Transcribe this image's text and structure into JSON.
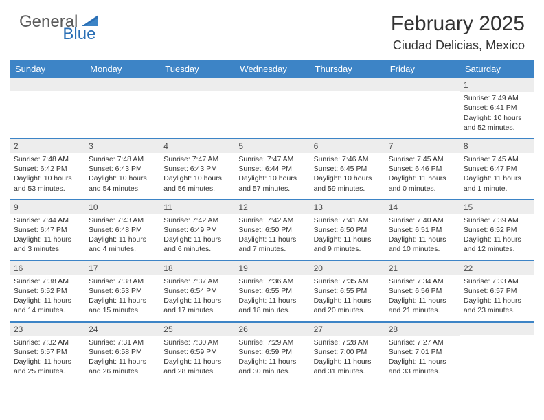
{
  "logo": {
    "general": "General",
    "blue": "Blue"
  },
  "title": "February 2025",
  "location": "Ciudad Delicias, Mexico",
  "colors": {
    "header_bar": "#3d84c6",
    "date_bar_bg": "#ededed",
    "text": "#333333",
    "logo_gray": "#5a5a5a",
    "logo_blue": "#2a6fb5"
  },
  "day_names": [
    "Sunday",
    "Monday",
    "Tuesday",
    "Wednesday",
    "Thursday",
    "Friday",
    "Saturday"
  ],
  "weeks": [
    [
      {
        "date": "",
        "sunrise": "",
        "sunset": "",
        "daylight": ""
      },
      {
        "date": "",
        "sunrise": "",
        "sunset": "",
        "daylight": ""
      },
      {
        "date": "",
        "sunrise": "",
        "sunset": "",
        "daylight": ""
      },
      {
        "date": "",
        "sunrise": "",
        "sunset": "",
        "daylight": ""
      },
      {
        "date": "",
        "sunrise": "",
        "sunset": "",
        "daylight": ""
      },
      {
        "date": "",
        "sunrise": "",
        "sunset": "",
        "daylight": ""
      },
      {
        "date": "1",
        "sunrise": "Sunrise: 7:49 AM",
        "sunset": "Sunset: 6:41 PM",
        "daylight": "Daylight: 10 hours and 52 minutes."
      }
    ],
    [
      {
        "date": "2",
        "sunrise": "Sunrise: 7:48 AM",
        "sunset": "Sunset: 6:42 PM",
        "daylight": "Daylight: 10 hours and 53 minutes."
      },
      {
        "date": "3",
        "sunrise": "Sunrise: 7:48 AM",
        "sunset": "Sunset: 6:43 PM",
        "daylight": "Daylight: 10 hours and 54 minutes."
      },
      {
        "date": "4",
        "sunrise": "Sunrise: 7:47 AM",
        "sunset": "Sunset: 6:43 PM",
        "daylight": "Daylight: 10 hours and 56 minutes."
      },
      {
        "date": "5",
        "sunrise": "Sunrise: 7:47 AM",
        "sunset": "Sunset: 6:44 PM",
        "daylight": "Daylight: 10 hours and 57 minutes."
      },
      {
        "date": "6",
        "sunrise": "Sunrise: 7:46 AM",
        "sunset": "Sunset: 6:45 PM",
        "daylight": "Daylight: 10 hours and 59 minutes."
      },
      {
        "date": "7",
        "sunrise": "Sunrise: 7:45 AM",
        "sunset": "Sunset: 6:46 PM",
        "daylight": "Daylight: 11 hours and 0 minutes."
      },
      {
        "date": "8",
        "sunrise": "Sunrise: 7:45 AM",
        "sunset": "Sunset: 6:47 PM",
        "daylight": "Daylight: 11 hours and 1 minute."
      }
    ],
    [
      {
        "date": "9",
        "sunrise": "Sunrise: 7:44 AM",
        "sunset": "Sunset: 6:47 PM",
        "daylight": "Daylight: 11 hours and 3 minutes."
      },
      {
        "date": "10",
        "sunrise": "Sunrise: 7:43 AM",
        "sunset": "Sunset: 6:48 PM",
        "daylight": "Daylight: 11 hours and 4 minutes."
      },
      {
        "date": "11",
        "sunrise": "Sunrise: 7:42 AM",
        "sunset": "Sunset: 6:49 PM",
        "daylight": "Daylight: 11 hours and 6 minutes."
      },
      {
        "date": "12",
        "sunrise": "Sunrise: 7:42 AM",
        "sunset": "Sunset: 6:50 PM",
        "daylight": "Daylight: 11 hours and 7 minutes."
      },
      {
        "date": "13",
        "sunrise": "Sunrise: 7:41 AM",
        "sunset": "Sunset: 6:50 PM",
        "daylight": "Daylight: 11 hours and 9 minutes."
      },
      {
        "date": "14",
        "sunrise": "Sunrise: 7:40 AM",
        "sunset": "Sunset: 6:51 PM",
        "daylight": "Daylight: 11 hours and 10 minutes."
      },
      {
        "date": "15",
        "sunrise": "Sunrise: 7:39 AM",
        "sunset": "Sunset: 6:52 PM",
        "daylight": "Daylight: 11 hours and 12 minutes."
      }
    ],
    [
      {
        "date": "16",
        "sunrise": "Sunrise: 7:38 AM",
        "sunset": "Sunset: 6:52 PM",
        "daylight": "Daylight: 11 hours and 14 minutes."
      },
      {
        "date": "17",
        "sunrise": "Sunrise: 7:38 AM",
        "sunset": "Sunset: 6:53 PM",
        "daylight": "Daylight: 11 hours and 15 minutes."
      },
      {
        "date": "18",
        "sunrise": "Sunrise: 7:37 AM",
        "sunset": "Sunset: 6:54 PM",
        "daylight": "Daylight: 11 hours and 17 minutes."
      },
      {
        "date": "19",
        "sunrise": "Sunrise: 7:36 AM",
        "sunset": "Sunset: 6:55 PM",
        "daylight": "Daylight: 11 hours and 18 minutes."
      },
      {
        "date": "20",
        "sunrise": "Sunrise: 7:35 AM",
        "sunset": "Sunset: 6:55 PM",
        "daylight": "Daylight: 11 hours and 20 minutes."
      },
      {
        "date": "21",
        "sunrise": "Sunrise: 7:34 AM",
        "sunset": "Sunset: 6:56 PM",
        "daylight": "Daylight: 11 hours and 21 minutes."
      },
      {
        "date": "22",
        "sunrise": "Sunrise: 7:33 AM",
        "sunset": "Sunset: 6:57 PM",
        "daylight": "Daylight: 11 hours and 23 minutes."
      }
    ],
    [
      {
        "date": "23",
        "sunrise": "Sunrise: 7:32 AM",
        "sunset": "Sunset: 6:57 PM",
        "daylight": "Daylight: 11 hours and 25 minutes."
      },
      {
        "date": "24",
        "sunrise": "Sunrise: 7:31 AM",
        "sunset": "Sunset: 6:58 PM",
        "daylight": "Daylight: 11 hours and 26 minutes."
      },
      {
        "date": "25",
        "sunrise": "Sunrise: 7:30 AM",
        "sunset": "Sunset: 6:59 PM",
        "daylight": "Daylight: 11 hours and 28 minutes."
      },
      {
        "date": "26",
        "sunrise": "Sunrise: 7:29 AM",
        "sunset": "Sunset: 6:59 PM",
        "daylight": "Daylight: 11 hours and 30 minutes."
      },
      {
        "date": "27",
        "sunrise": "Sunrise: 7:28 AM",
        "sunset": "Sunset: 7:00 PM",
        "daylight": "Daylight: 11 hours and 31 minutes."
      },
      {
        "date": "28",
        "sunrise": "Sunrise: 7:27 AM",
        "sunset": "Sunset: 7:01 PM",
        "daylight": "Daylight: 11 hours and 33 minutes."
      },
      {
        "date": "",
        "sunrise": "",
        "sunset": "",
        "daylight": ""
      }
    ]
  ]
}
